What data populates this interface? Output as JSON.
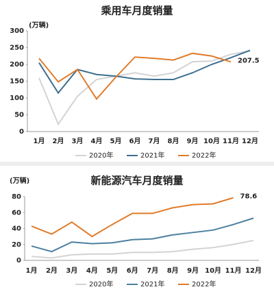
{
  "chart_data": [
    {
      "type": "line",
      "title": "乘用车月度销量",
      "y_label": "(万辆)",
      "categories": [
        "1月",
        "2月",
        "3月",
        "4月",
        "5月",
        "6月",
        "7月",
        "8月",
        "9月",
        "10月",
        "11月",
        "12月"
      ],
      "ylim": [
        0,
        300
      ],
      "yticks": [
        0,
        50,
        100,
        150,
        200,
        250,
        300
      ],
      "series": [
        {
          "name": "2020年",
          "color": "#d3d3d3",
          "values": [
            160,
            22,
            105,
            155,
            165,
            175,
            165,
            175,
            208,
            210,
            230,
            240
          ]
        },
        {
          "name": "2021年",
          "color": "#3d6e8f",
          "values": [
            205,
            115,
            185,
            170,
            165,
            157,
            155,
            155,
            175,
            200,
            220,
            242
          ]
        },
        {
          "name": "2022年",
          "color": "#e07b29",
          "values": [
            218,
            148,
            185,
            97,
            162,
            222,
            218,
            213,
            233,
            225,
            207.5,
            null
          ],
          "value_labels": [
            null,
            null,
            null,
            null,
            null,
            null,
            null,
            null,
            null,
            null,
            "207.5",
            null
          ]
        }
      ]
    },
    {
      "type": "line",
      "title": "新能源汽车月度销量",
      "y_label": "(万辆)",
      "categories": [
        "1月",
        "2月",
        "3月",
        "4月",
        "5月",
        "6月",
        "7月",
        "8月",
        "9月",
        "10月",
        "11月",
        "12月"
      ],
      "ylim": [
        0,
        80
      ],
      "yticks": [
        0,
        20,
        40,
        60,
        80
      ],
      "series": [
        {
          "name": "2020年",
          "color": "#d3d3d3",
          "values": [
            5,
            3,
            7,
            8,
            8,
            10,
            10,
            11,
            14,
            16,
            20,
            25
          ]
        },
        {
          "name": "2021年",
          "color": "#4a7f9e",
          "values": [
            18,
            11,
            23,
            21,
            22,
            26,
            27,
            32,
            35,
            38,
            45,
            53
          ]
        },
        {
          "name": "2022年",
          "color": "#e07b29",
          "values": [
            43,
            33,
            48,
            30,
            45,
            59,
            59,
            66,
            70,
            71,
            78.6,
            null
          ],
          "value_labels": [
            null,
            null,
            null,
            null,
            null,
            null,
            null,
            null,
            null,
            null,
            "78.6",
            null
          ]
        }
      ]
    }
  ]
}
